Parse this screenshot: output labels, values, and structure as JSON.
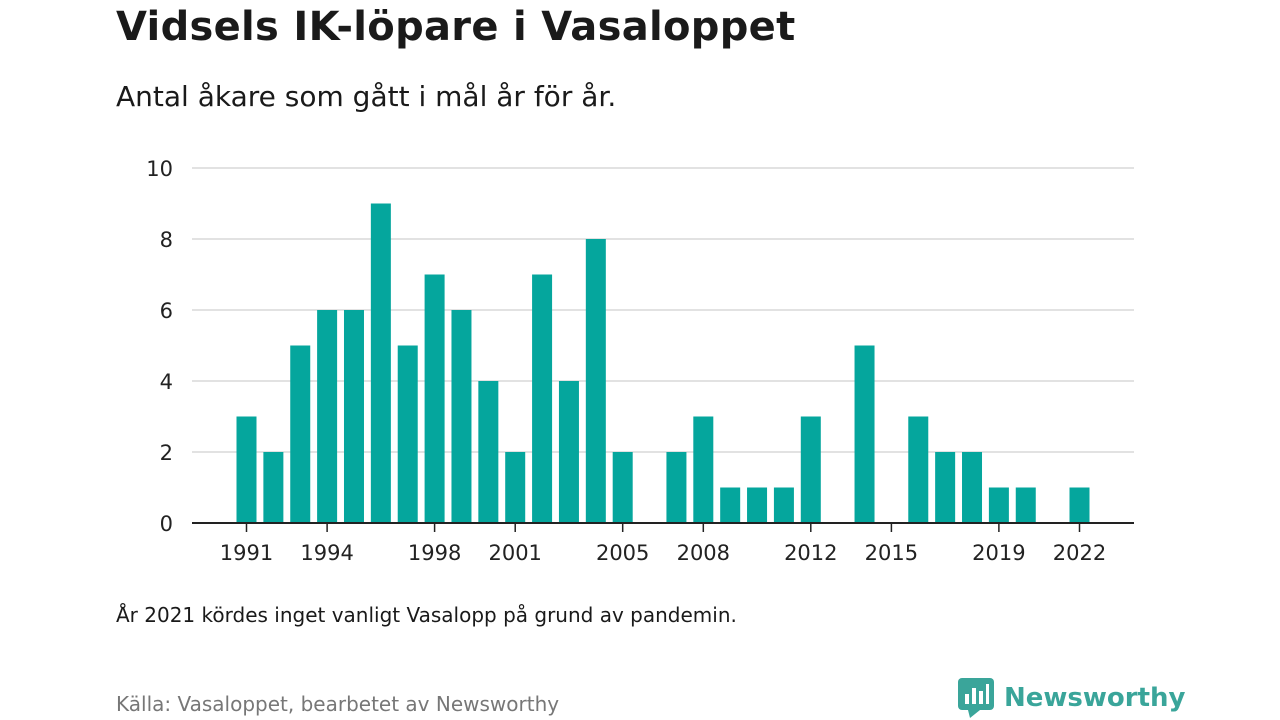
{
  "header": {
    "title": "Vidsels IK-löpare i Vasaloppet",
    "subtitle": "Antal åkare som gått i mål år för år."
  },
  "note": "År 2021 kördes inget vanligt Vasalopp på grund av pandemin.",
  "source": "Källa: Vasaloppet, bearbetet av Newsworthy",
  "brand": {
    "name": "Newsworthy",
    "icon": "newsworthy-logo-icon",
    "color": "#3aa59a"
  },
  "chart_data": {
    "type": "bar",
    "bar_color": "#05a69d",
    "x": [
      1991,
      1992,
      1993,
      1994,
      1995,
      1996,
      1997,
      1998,
      1999,
      2000,
      2001,
      2002,
      2003,
      2004,
      2005,
      2006,
      2007,
      2008,
      2009,
      2010,
      2011,
      2012,
      2013,
      2014,
      2015,
      2016,
      2017,
      2018,
      2019,
      2020,
      2021,
      2022
    ],
    "values": [
      3,
      2,
      5,
      6,
      6,
      9,
      5,
      7,
      6,
      4,
      2,
      7,
      4,
      8,
      2,
      0,
      2,
      3,
      1,
      1,
      1,
      3,
      0,
      5,
      0,
      3,
      2,
      2,
      1,
      1,
      0,
      1
    ],
    "x_tick_labels": [
      "1991",
      "1994",
      "1998",
      "2001",
      "2005",
      "2008",
      "2012",
      "2015",
      "2019",
      "2022"
    ],
    "y_ticks": [
      0,
      2,
      4,
      6,
      8,
      10
    ],
    "ylim": [
      0,
      10
    ],
    "grid": true,
    "xlabel": "",
    "ylabel": ""
  }
}
